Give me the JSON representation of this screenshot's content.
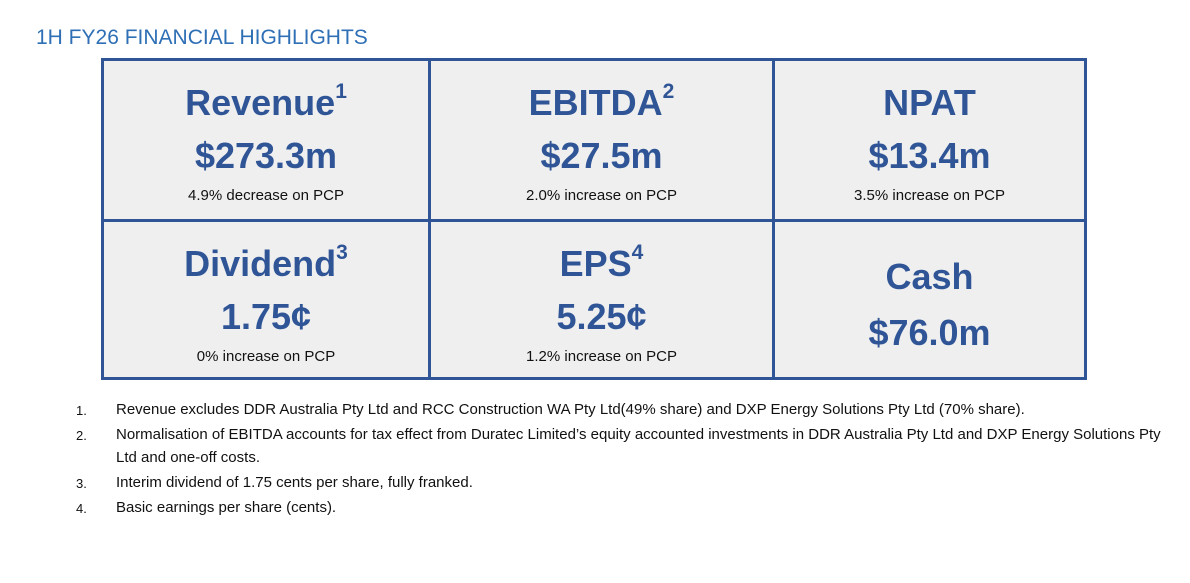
{
  "title": "1H FY26 FINANCIAL HIGHLIGHTS",
  "highlights": [
    {
      "label": "Revenue",
      "sup": "1",
      "value": "$273.3m",
      "note": "4.9% decrease on PCP"
    },
    {
      "label": "EBITDA",
      "sup": "2",
      "value": "$27.5m",
      "note": "2.0% increase on PCP"
    },
    {
      "label": "NPAT",
      "sup": "",
      "value": "$13.4m",
      "note": "3.5% increase on PCP"
    },
    {
      "label": "Dividend",
      "sup": "3",
      "value": "1.75¢",
      "note": "0% increase on PCP"
    },
    {
      "label": "EPS",
      "sup": "4",
      "value": "5.25¢",
      "note": "1.2% increase on PCP"
    },
    {
      "label": "Cash",
      "sup": "",
      "value": "$76.0m",
      "note": ""
    }
  ],
  "footnotes": [
    {
      "num": "1.",
      "text": "Revenue excludes DDR Australia Pty Ltd and RCC Construction WA Pty Ltd(49% share) and DXP Energy Solutions Pty Ltd (70% share)."
    },
    {
      "num": "2.",
      "text": "Normalisation of EBITDA accounts for tax effect from Duratec Limited’s equity accounted investments in DDR Australia Pty Ltd and DXP Energy Solutions Pty Ltd and one-off costs."
    },
    {
      "num": "3.",
      "text": "Interim dividend of 1.75 cents per share, fully franked."
    },
    {
      "num": "4.",
      "text": "Basic earnings per share (cents)."
    }
  ]
}
